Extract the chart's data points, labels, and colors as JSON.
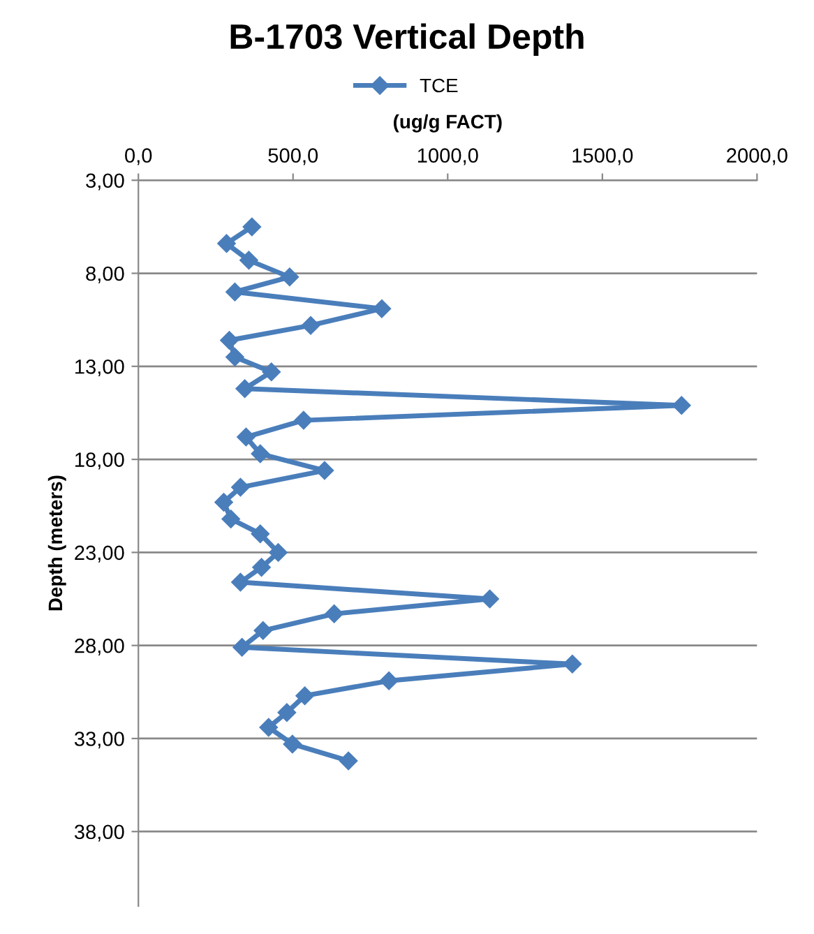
{
  "chart_data": {
    "type": "line",
    "title": "B-1703 Vertical Depth",
    "xlabel": "(ug/g FACT)",
    "ylabel": "Depth (meters)",
    "x": [
      367,
      285,
      357,
      489,
      312,
      787,
      557,
      294,
      312,
      430,
      344,
      1756,
      534,
      348,
      394,
      602,
      330,
      276,
      299,
      394,
      452,
      398,
      330,
      1136,
      633,
      403,
      335,
      1403,
      810,
      538,
      480,
      421,
      498,
      679
    ],
    "series": [
      {
        "name": "TCE",
        "color": "#4a7ebb",
        "values": [
          5.5,
          6.4,
          7.3,
          8.2,
          9.0,
          9.9,
          10.8,
          11.6,
          12.5,
          13.3,
          14.2,
          15.1,
          15.9,
          16.8,
          17.7,
          18.6,
          19.5,
          20.3,
          21.2,
          22.0,
          23.0,
          23.8,
          24.6,
          25.5,
          26.3,
          27.2,
          28.1,
          29.0,
          29.9,
          30.7,
          31.6,
          32.4,
          33.3,
          34.2
        ]
      }
    ],
    "xlim": [
      0,
      2000
    ],
    "xticks": [
      {
        "value": 0,
        "label": "0,0"
      },
      {
        "value": 500,
        "label": "500,0"
      },
      {
        "value": 1000,
        "label": "1000,0"
      },
      {
        "value": 1500,
        "label": "1500,0"
      },
      {
        "value": 2000,
        "label": "2000,0"
      }
    ],
    "ylim": [
      42,
      3
    ],
    "yticks": [
      {
        "value": 3,
        "label": "3,00"
      },
      {
        "value": 8,
        "label": "8,00"
      },
      {
        "value": 13,
        "label": "13,00"
      },
      {
        "value": 18,
        "label": "18,00"
      },
      {
        "value": 23,
        "label": "23,00"
      },
      {
        "value": 28,
        "label": "28,00"
      },
      {
        "value": 33,
        "label": "33,00"
      },
      {
        "value": 38,
        "label": "38,00"
      }
    ],
    "grid": "y",
    "legend": "top",
    "marker": "diamond",
    "line_style": "solid"
  }
}
